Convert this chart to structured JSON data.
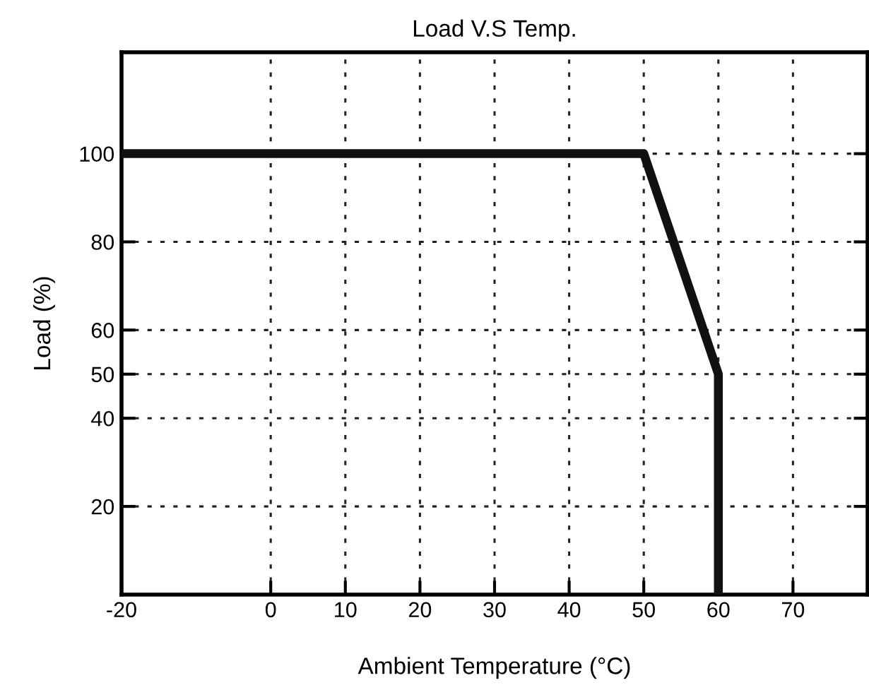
{
  "chart_data": {
    "type": "line",
    "title": "Load V.S Temp.",
    "xlabel": "Ambient Temperature (°C)",
    "ylabel": "Load (%)",
    "x": [
      -20,
      50,
      60,
      60
    ],
    "series": [
      {
        "color": "#111111",
        "values": [
          100,
          100,
          50,
          0
        ]
      }
    ],
    "xlim": [
      -20,
      80
    ],
    "ylim": [
      0,
      123
    ],
    "xticks": [
      -20,
      0,
      10,
      20,
      30,
      40,
      50,
      60,
      70
    ],
    "yticks": [
      20,
      40,
      50,
      60,
      80,
      100
    ],
    "grid": true,
    "legend": false,
    "marker": "none",
    "line_style": "solid"
  }
}
